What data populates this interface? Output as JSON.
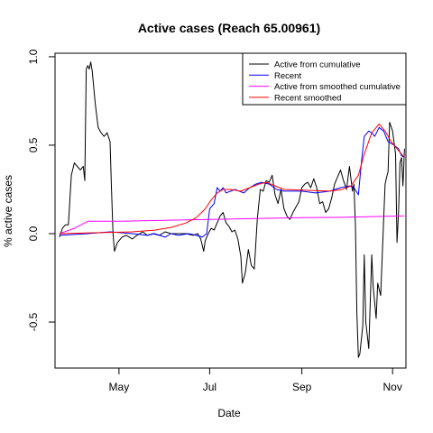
{
  "chart_data": {
    "type": "line",
    "title": "Active cases (Reach 65.00961)",
    "xlabel": "Date",
    "ylabel": "% active cases",
    "x_unit": "date",
    "xlim": [
      "2020-03-19",
      "2020-11-10"
    ],
    "ylim": [
      -0.76,
      1.02
    ],
    "x_ticks": [
      {
        "date": "2020-05-01",
        "label": "May"
      },
      {
        "date": "2020-07-01",
        "label": "Jul"
      },
      {
        "date": "2020-09-01",
        "label": "Sep"
      },
      {
        "date": "2020-11-01",
        "label": "Nov"
      }
    ],
    "y_ticks": [
      {
        "value": -0.5,
        "label": "-0.5"
      },
      {
        "value": 0.0,
        "label": "0.0"
      },
      {
        "value": 0.5,
        "label": "0.5"
      },
      {
        "value": 1.0,
        "label": "1.0"
      }
    ],
    "legend_position": "top-right",
    "series": [
      {
        "name": "Active from cumulative",
        "color": "#000000",
        "points": [
          [
            "2020-03-22",
            -0.02
          ],
          [
            "2020-03-24",
            0.03
          ],
          [
            "2020-03-26",
            0.05
          ],
          [
            "2020-03-28",
            0.05
          ],
          [
            "2020-03-30",
            0.33
          ],
          [
            "2020-04-01",
            0.4
          ],
          [
            "2020-04-03",
            0.38
          ],
          [
            "2020-04-05",
            0.36
          ],
          [
            "2020-04-07",
            0.38
          ],
          [
            "2020-04-08",
            0.3
          ],
          [
            "2020-04-09",
            0.93
          ],
          [
            "2020-04-10",
            0.95
          ],
          [
            "2020-04-11",
            0.93
          ],
          [
            "2020-04-12",
            0.97
          ],
          [
            "2020-04-13",
            0.92
          ],
          [
            "2020-04-15",
            0.74
          ],
          [
            "2020-04-17",
            0.6
          ],
          [
            "2020-04-19",
            0.57
          ],
          [
            "2020-04-21",
            0.55
          ],
          [
            "2020-04-23",
            0.57
          ],
          [
            "2020-04-25",
            0.52
          ],
          [
            "2020-04-26",
            0.25
          ],
          [
            "2020-04-27",
            0.0
          ],
          [
            "2020-04-28",
            -0.1
          ],
          [
            "2020-04-30",
            -0.05
          ],
          [
            "2020-05-03",
            -0.02
          ],
          [
            "2020-05-06",
            -0.01
          ],
          [
            "2020-05-10",
            -0.03
          ],
          [
            "2020-05-13",
            -0.01
          ],
          [
            "2020-05-17",
            0.01
          ],
          [
            "2020-05-20",
            -0.01
          ],
          [
            "2020-05-24",
            0.0
          ],
          [
            "2020-05-28",
            -0.01
          ],
          [
            "2020-06-01",
            0.01
          ],
          [
            "2020-06-05",
            0.0
          ],
          [
            "2020-06-10",
            0.0
          ],
          [
            "2020-06-15",
            0.0
          ],
          [
            "2020-06-20",
            -0.01
          ],
          [
            "2020-06-23",
            0.0
          ],
          [
            "2020-06-25",
            -0.03
          ],
          [
            "2020-06-27",
            -0.1
          ],
          [
            "2020-06-28",
            -0.04
          ],
          [
            "2020-06-30",
            0.0
          ],
          [
            "2020-07-02",
            0.03
          ],
          [
            "2020-07-04",
            0.02
          ],
          [
            "2020-07-06",
            0.06
          ],
          [
            "2020-07-08",
            0.1
          ],
          [
            "2020-07-10",
            0.12
          ],
          [
            "2020-07-12",
            0.06
          ],
          [
            "2020-07-14",
            0.04
          ],
          [
            "2020-07-16",
            0.01
          ],
          [
            "2020-07-18",
            0.02
          ],
          [
            "2020-07-20",
            -0.03
          ],
          [
            "2020-07-22",
            -0.13
          ],
          [
            "2020-07-23",
            -0.28
          ],
          [
            "2020-07-25",
            -0.22
          ],
          [
            "2020-07-27",
            -0.09
          ],
          [
            "2020-07-29",
            -0.18
          ],
          [
            "2020-07-31",
            -0.2
          ],
          [
            "2020-08-02",
            0.08
          ],
          [
            "2020-08-04",
            0.25
          ],
          [
            "2020-08-06",
            0.24
          ],
          [
            "2020-08-08",
            0.3
          ],
          [
            "2020-08-10",
            0.29
          ],
          [
            "2020-08-12",
            0.33
          ],
          [
            "2020-08-14",
            0.22
          ],
          [
            "2020-08-16",
            0.17
          ],
          [
            "2020-08-18",
            0.25
          ],
          [
            "2020-08-20",
            0.14
          ],
          [
            "2020-08-22",
            0.1
          ],
          [
            "2020-08-24",
            0.08
          ],
          [
            "2020-08-26",
            0.12
          ],
          [
            "2020-08-28",
            0.15
          ],
          [
            "2020-08-30",
            0.18
          ],
          [
            "2020-09-01",
            0.26
          ],
          [
            "2020-09-03",
            0.28
          ],
          [
            "2020-09-05",
            0.29
          ],
          [
            "2020-09-07",
            0.26
          ],
          [
            "2020-09-09",
            0.31
          ],
          [
            "2020-09-11",
            0.26
          ],
          [
            "2020-09-13",
            0.17
          ],
          [
            "2020-09-15",
            0.18
          ],
          [
            "2020-09-17",
            0.12
          ],
          [
            "2020-09-19",
            0.14
          ],
          [
            "2020-09-21",
            0.2
          ],
          [
            "2020-09-23",
            0.28
          ],
          [
            "2020-09-25",
            0.32
          ],
          [
            "2020-09-27",
            0.36
          ],
          [
            "2020-09-29",
            0.3
          ],
          [
            "2020-10-01",
            0.25
          ],
          [
            "2020-10-03",
            0.38
          ],
          [
            "2020-10-05",
            0.24
          ],
          [
            "2020-10-06",
            0.28
          ],
          [
            "2020-10-07",
            0.05
          ],
          [
            "2020-10-08",
            -0.45
          ],
          [
            "2020-10-09",
            -0.7
          ],
          [
            "2020-10-10",
            -0.68
          ],
          [
            "2020-10-12",
            -0.52
          ],
          [
            "2020-10-13",
            -0.12
          ],
          [
            "2020-10-14",
            -0.5
          ],
          [
            "2020-10-16",
            -0.65
          ],
          [
            "2020-10-18",
            -0.12
          ],
          [
            "2020-10-19",
            -0.3
          ],
          [
            "2020-10-21",
            -0.48
          ],
          [
            "2020-10-22",
            -0.28
          ],
          [
            "2020-10-24",
            -0.35
          ],
          [
            "2020-10-26",
            0.08
          ],
          [
            "2020-10-27",
            0.28
          ],
          [
            "2020-10-28",
            0.32
          ],
          [
            "2020-10-29",
            0.35
          ],
          [
            "2020-10-30",
            0.63
          ],
          [
            "2020-11-01",
            0.58
          ],
          [
            "2020-11-03",
            0.45
          ],
          [
            "2020-11-04",
            -0.05
          ],
          [
            "2020-11-05",
            0.12
          ],
          [
            "2020-11-06",
            0.4
          ],
          [
            "2020-11-07",
            0.43
          ],
          [
            "2020-11-08",
            0.27
          ],
          [
            "2020-11-09",
            0.48
          ]
        ]
      },
      {
        "name": "Recent",
        "color": "#0000ff",
        "points": [
          [
            "2020-03-22",
            -0.01
          ],
          [
            "2020-04-10",
            0.0
          ],
          [
            "2020-04-25",
            0.01
          ],
          [
            "2020-05-10",
            0.0
          ],
          [
            "2020-05-20",
            -0.01
          ],
          [
            "2020-05-25",
            0.0
          ],
          [
            "2020-06-01",
            -0.02
          ],
          [
            "2020-06-05",
            0.0
          ],
          [
            "2020-06-10",
            -0.01
          ],
          [
            "2020-06-17",
            0.0
          ],
          [
            "2020-06-22",
            -0.01
          ],
          [
            "2020-06-26",
            -0.02
          ],
          [
            "2020-06-29",
            0.0
          ],
          [
            "2020-07-01",
            0.14
          ],
          [
            "2020-07-04",
            0.17
          ],
          [
            "2020-07-06",
            0.26
          ],
          [
            "2020-07-08",
            0.24
          ],
          [
            "2020-07-10",
            0.26
          ],
          [
            "2020-07-12",
            0.23
          ],
          [
            "2020-07-18",
            0.25
          ],
          [
            "2020-07-24",
            0.23
          ],
          [
            "2020-07-28",
            0.26
          ],
          [
            "2020-08-01",
            0.28
          ],
          [
            "2020-08-05",
            0.29
          ],
          [
            "2020-08-10",
            0.28
          ],
          [
            "2020-08-15",
            0.25
          ],
          [
            "2020-08-20",
            0.24
          ],
          [
            "2020-09-01",
            0.24
          ],
          [
            "2020-09-10",
            0.23
          ],
          [
            "2020-09-20",
            0.24
          ],
          [
            "2020-09-27",
            0.26
          ],
          [
            "2020-10-03",
            0.27
          ],
          [
            "2020-10-06",
            0.26
          ],
          [
            "2020-10-09",
            0.22
          ],
          [
            "2020-10-11",
            0.4
          ],
          [
            "2020-10-13",
            0.55
          ],
          [
            "2020-10-16",
            0.58
          ],
          [
            "2020-10-18",
            0.57
          ],
          [
            "2020-10-20",
            0.55
          ],
          [
            "2020-10-23",
            0.6
          ],
          [
            "2020-10-26",
            0.58
          ],
          [
            "2020-10-29",
            0.52
          ],
          [
            "2020-11-02",
            0.5
          ],
          [
            "2020-11-05",
            0.48
          ],
          [
            "2020-11-07",
            0.44
          ],
          [
            "2020-11-09",
            0.43
          ]
        ]
      },
      {
        "name": "Active from smoothed cumulative",
        "color": "#ff00ff",
        "points": [
          [
            "2020-03-22",
            0.0
          ],
          [
            "2020-04-01",
            0.03
          ],
          [
            "2020-04-10",
            0.07
          ],
          [
            "2020-05-01",
            0.07
          ],
          [
            "2020-06-01",
            0.075
          ],
          [
            "2020-07-01",
            0.08
          ],
          [
            "2020-08-01",
            0.085
          ],
          [
            "2020-09-01",
            0.09
          ],
          [
            "2020-10-01",
            0.093
          ],
          [
            "2020-11-09",
            0.1
          ]
        ]
      },
      {
        "name": "Recent smoothed",
        "color": "#ff0000",
        "points": [
          [
            "2020-03-22",
            0.0
          ],
          [
            "2020-04-15",
            0.005
          ],
          [
            "2020-05-10",
            0.01
          ],
          [
            "2020-05-25",
            0.02
          ],
          [
            "2020-06-05",
            0.035
          ],
          [
            "2020-06-15",
            0.06
          ],
          [
            "2020-06-22",
            0.09
          ],
          [
            "2020-06-28",
            0.14
          ],
          [
            "2020-07-02",
            0.19
          ],
          [
            "2020-07-06",
            0.23
          ],
          [
            "2020-07-10",
            0.25
          ],
          [
            "2020-07-15",
            0.25
          ],
          [
            "2020-07-22",
            0.24
          ],
          [
            "2020-07-28",
            0.26
          ],
          [
            "2020-08-03",
            0.28
          ],
          [
            "2020-08-08",
            0.29
          ],
          [
            "2020-08-14",
            0.27
          ],
          [
            "2020-08-20",
            0.25
          ],
          [
            "2020-09-05",
            0.245
          ],
          [
            "2020-09-20",
            0.24
          ],
          [
            "2020-09-28",
            0.25
          ],
          [
            "2020-10-04",
            0.27
          ],
          [
            "2020-10-09",
            0.33
          ],
          [
            "2020-10-13",
            0.45
          ],
          [
            "2020-10-18",
            0.57
          ],
          [
            "2020-10-23",
            0.62
          ],
          [
            "2020-10-27",
            0.58
          ],
          [
            "2020-10-31",
            0.52
          ],
          [
            "2020-11-04",
            0.48
          ],
          [
            "2020-11-07",
            0.45
          ],
          [
            "2020-11-09",
            0.43
          ]
        ]
      }
    ]
  }
}
